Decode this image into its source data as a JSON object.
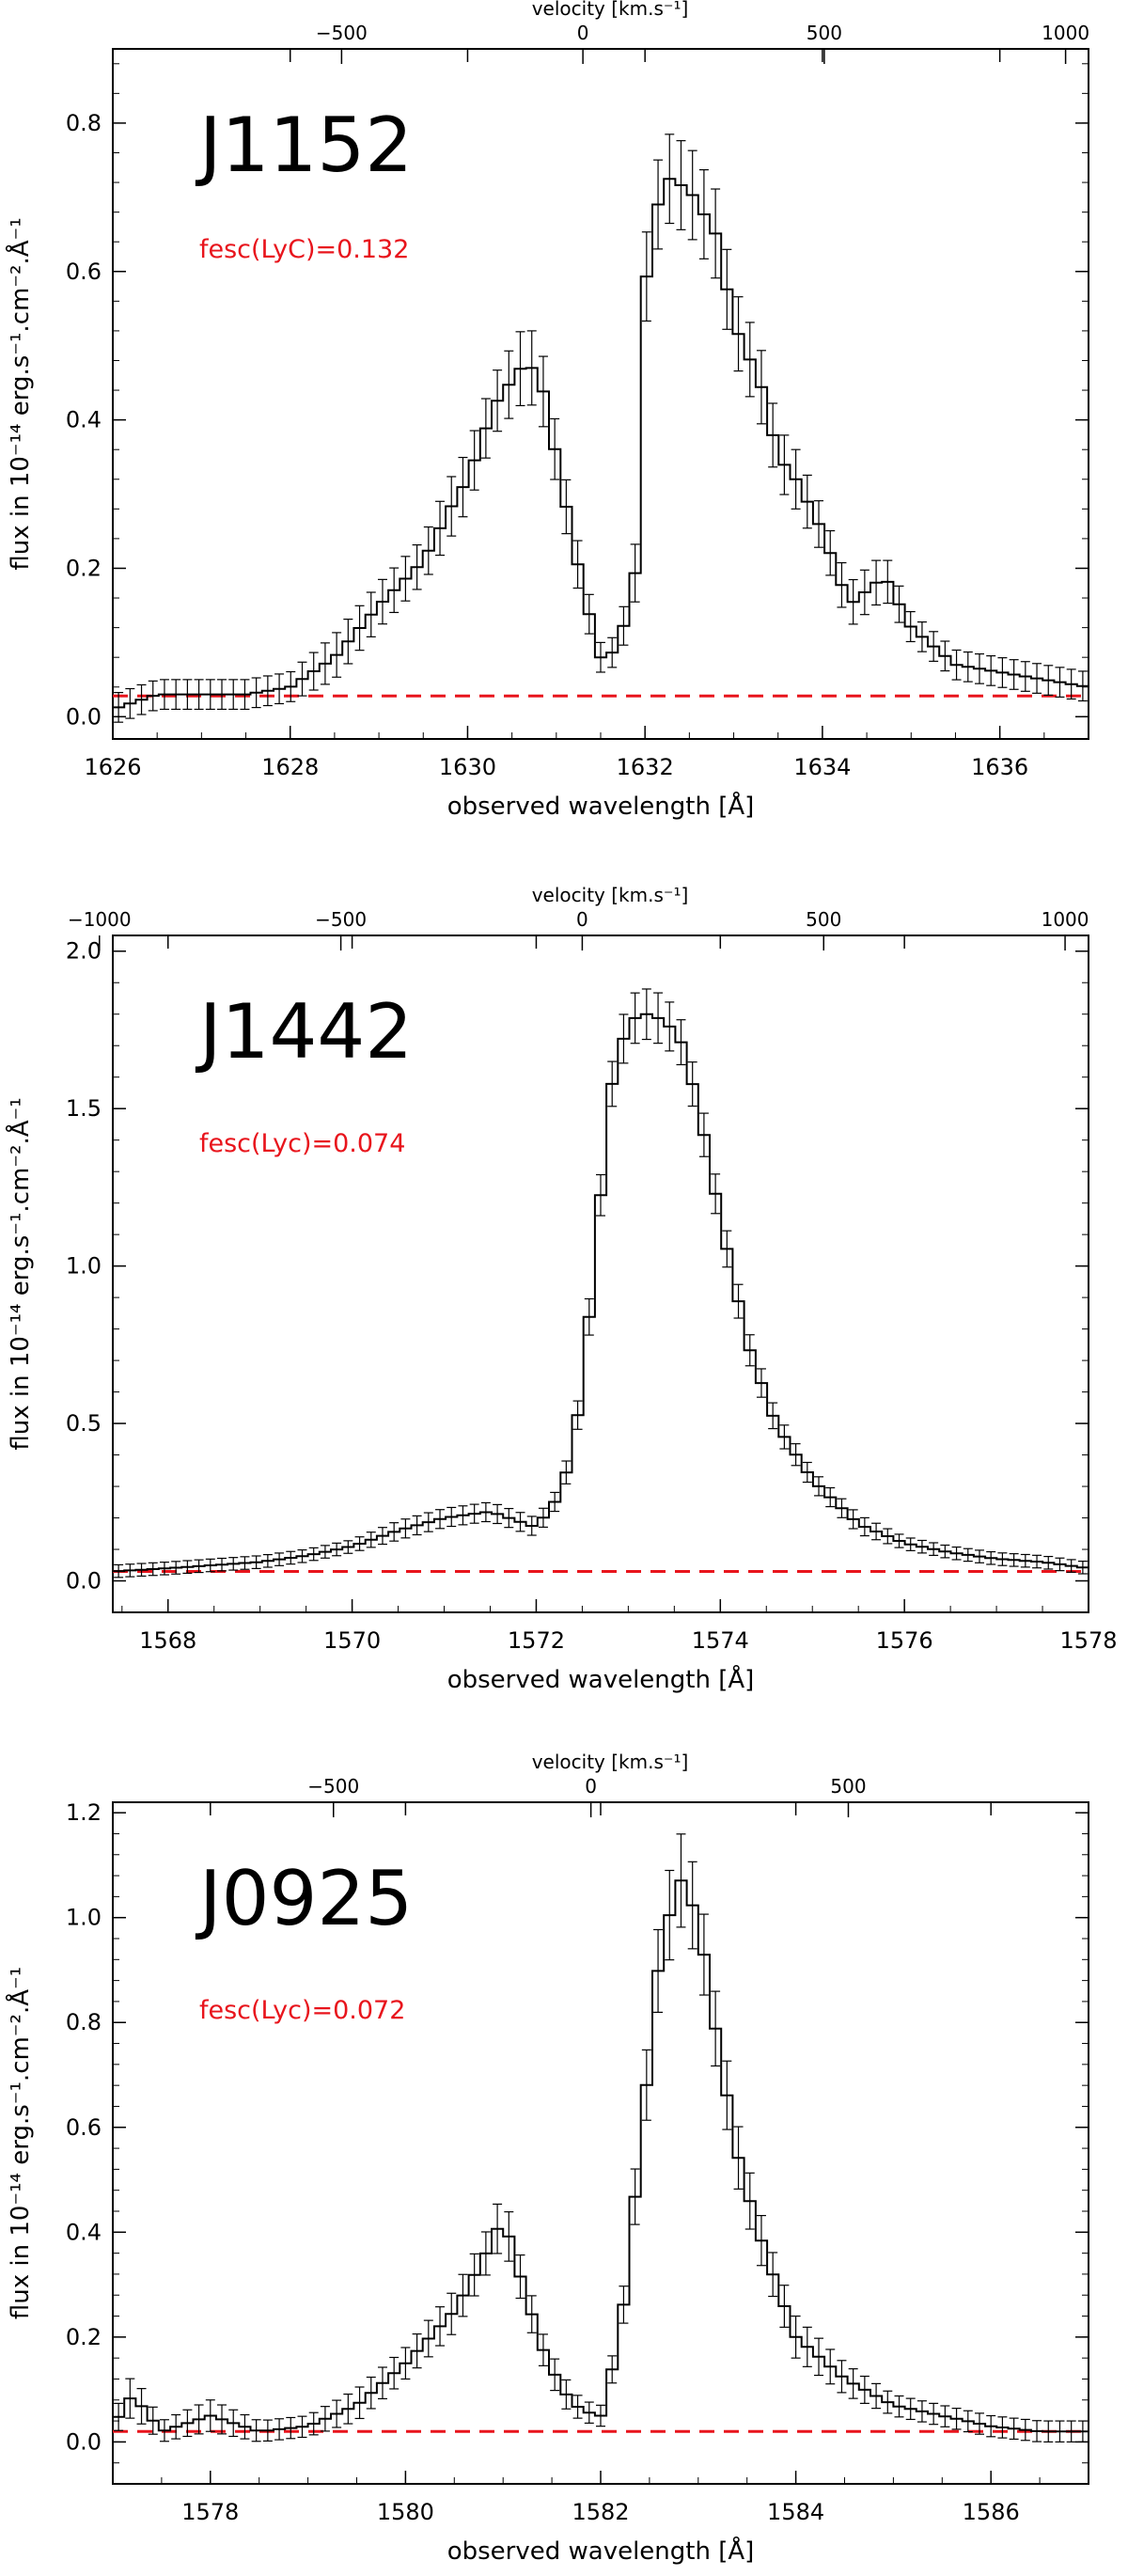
{
  "style": {
    "step_color": "#000000",
    "continuum_color": "#e8141c",
    "frame_color": "#000000"
  },
  "chart_data": [
    {
      "type": "line",
      "name": "J1152",
      "title": "J1152",
      "annotation": "fesc(LyC)=0.132",
      "xlabel": "observed wavelength [Å]",
      "ylabel": "flux in 10⁻¹⁴ erg.s⁻¹.cm⁻².Å⁻¹",
      "top_axis_label": "velocity [km.s⁻¹]",
      "xlim": [
        1626,
        1637
      ],
      "ylim": [
        -0.03,
        0.9
      ],
      "xticks": [
        1626,
        1628,
        1630,
        1632,
        1634,
        1636
      ],
      "xtick_labels": [
        "1626",
        "1628",
        "1630",
        "1632",
        "1634",
        "1636"
      ],
      "yticks": [
        0.0,
        0.2,
        0.4,
        0.6,
        0.8
      ],
      "ytick_labels": [
        "0.0",
        "0.2",
        "0.4",
        "0.6",
        "0.8"
      ],
      "top_ticks": [
        -500,
        0,
        500,
        1000
      ],
      "top_tick_labels": [
        "−500",
        "0",
        "500",
        "1000"
      ],
      "rest_wavelength": 1631.3,
      "continuum": 0.028,
      "x": [
        1626.0,
        1626.5,
        1627.0,
        1627.5,
        1628.0,
        1628.5,
        1629.0,
        1629.5,
        1629.8,
        1630.0,
        1630.3,
        1630.6,
        1630.8,
        1631.0,
        1631.3,
        1631.5,
        1631.7,
        1631.9,
        1632.0,
        1632.2,
        1632.5,
        1632.8,
        1633.0,
        1633.3,
        1633.5,
        1633.7,
        1634.0,
        1634.3,
        1634.7,
        1635.0,
        1635.5,
        1636.0,
        1636.5,
        1637.0
      ],
      "y": [
        0.01,
        0.03,
        0.03,
        0.03,
        0.04,
        0.08,
        0.15,
        0.21,
        0.28,
        0.32,
        0.42,
        0.47,
        0.47,
        0.35,
        0.17,
        0.08,
        0.09,
        0.2,
        0.58,
        0.73,
        0.71,
        0.65,
        0.53,
        0.45,
        0.35,
        0.32,
        0.25,
        0.15,
        0.19,
        0.12,
        0.07,
        0.06,
        0.05,
        0.04
      ],
      "err": [
        0.02,
        0.02,
        0.02,
        0.02,
        0.02,
        0.03,
        0.03,
        0.03,
        0.04,
        0.04,
        0.04,
        0.05,
        0.05,
        0.04,
        0.03,
        0.02,
        0.02,
        0.04,
        0.06,
        0.06,
        0.06,
        0.06,
        0.05,
        0.05,
        0.04,
        0.04,
        0.03,
        0.03,
        0.03,
        0.02,
        0.02,
        0.02,
        0.02,
        0.02
      ]
    },
    {
      "type": "line",
      "name": "J1442",
      "title": "J1442",
      "annotation": "fesc(Lyc)=0.074",
      "xlabel": "observed wavelength [Å]",
      "ylabel": "flux in 10⁻¹⁴ erg.s⁻¹.cm⁻².Å⁻¹",
      "top_axis_label": "velocity [km.s⁻¹]",
      "xlim": [
        1567.4,
        1578.0
      ],
      "ylim": [
        -0.1,
        2.05
      ],
      "xticks": [
        1568,
        1570,
        1572,
        1574,
        1576,
        1578
      ],
      "xtick_labels": [
        "1568",
        "1570",
        "1572",
        "1574",
        "1576",
        "1578"
      ],
      "yticks": [
        0.0,
        0.5,
        1.0,
        1.5,
        2.0
      ],
      "ytick_labels": [
        "0.0",
        "0.5",
        "1.0",
        "1.5",
        "2.0"
      ],
      "top_ticks": [
        -1000,
        -500,
        0,
        500,
        1000
      ],
      "top_tick_labels": [
        "−1000",
        "−500",
        "0",
        "500",
        "1000"
      ],
      "rest_wavelength": 1572.5,
      "continuum": 0.03,
      "x": [
        1567.4,
        1568.0,
        1568.5,
        1569.0,
        1569.5,
        1570.0,
        1570.5,
        1571.0,
        1571.5,
        1572.0,
        1572.2,
        1572.4,
        1572.6,
        1572.8,
        1573.0,
        1573.2,
        1573.4,
        1573.6,
        1573.8,
        1574.0,
        1574.3,
        1574.6,
        1575.0,
        1575.5,
        1576.0,
        1576.5,
        1577.0,
        1577.5,
        1578.0
      ],
      "y": [
        0.03,
        0.04,
        0.05,
        0.06,
        0.08,
        0.11,
        0.16,
        0.2,
        0.22,
        0.17,
        0.25,
        0.4,
        0.9,
        1.55,
        1.78,
        1.8,
        1.78,
        1.7,
        1.45,
        1.15,
        0.75,
        0.5,
        0.32,
        0.18,
        0.12,
        0.09,
        0.07,
        0.06,
        0.04
      ],
      "err": [
        0.02,
        0.02,
        0.02,
        0.02,
        0.02,
        0.02,
        0.03,
        0.03,
        0.03,
        0.03,
        0.03,
        0.04,
        0.06,
        0.07,
        0.08,
        0.08,
        0.08,
        0.07,
        0.07,
        0.06,
        0.05,
        0.04,
        0.03,
        0.03,
        0.02,
        0.02,
        0.02,
        0.02,
        0.02
      ]
    },
    {
      "type": "line",
      "name": "J0925",
      "title": "J0925",
      "annotation": "fesc(Lyc)=0.072",
      "xlabel": "observed wavelength [Å]",
      "ylabel": "flux in 10⁻¹⁴ erg.s⁻¹.cm⁻².Å⁻¹",
      "top_axis_label": "velocity [km.s⁻¹]",
      "xlim": [
        1577.0,
        1587.0
      ],
      "ylim": [
        -0.08,
        1.22
      ],
      "xticks": [
        1578,
        1580,
        1582,
        1584,
        1586
      ],
      "xtick_labels": [
        "1578",
        "1580",
        "1582",
        "1584",
        "1586"
      ],
      "yticks": [
        0.0,
        0.2,
        0.4,
        0.6,
        0.8,
        1.0,
        1.2
      ],
      "ytick_labels": [
        "0.0",
        "0.2",
        "0.4",
        "0.6",
        "0.8",
        "1.0",
        "1.2"
      ],
      "top_ticks": [
        -500,
        0,
        500
      ],
      "top_tick_labels": [
        "−500",
        "0",
        "500"
      ],
      "rest_wavelength": 1581.9,
      "continuum": 0.02,
      "x": [
        1577.0,
        1577.2,
        1577.5,
        1578.0,
        1578.5,
        1579.0,
        1579.5,
        1580.0,
        1580.5,
        1580.8,
        1581.0,
        1581.2,
        1581.4,
        1581.6,
        1581.8,
        1582.0,
        1582.2,
        1582.4,
        1582.6,
        1582.8,
        1583.0,
        1583.2,
        1583.4,
        1583.6,
        1583.8,
        1584.0,
        1584.5,
        1585.0,
        1585.5,
        1586.0,
        1586.5,
        1587.0
      ],
      "y": [
        0.03,
        0.09,
        0.02,
        0.05,
        0.02,
        0.03,
        0.07,
        0.15,
        0.25,
        0.35,
        0.43,
        0.3,
        0.18,
        0.1,
        0.06,
        0.05,
        0.2,
        0.55,
        0.92,
        1.08,
        1.0,
        0.76,
        0.55,
        0.41,
        0.3,
        0.2,
        0.12,
        0.07,
        0.05,
        0.03,
        0.02,
        0.02
      ],
      "err": [
        0.02,
        0.04,
        0.02,
        0.03,
        0.02,
        0.02,
        0.03,
        0.03,
        0.04,
        0.04,
        0.05,
        0.04,
        0.03,
        0.03,
        0.02,
        0.02,
        0.03,
        0.06,
        0.08,
        0.09,
        0.08,
        0.07,
        0.06,
        0.05,
        0.04,
        0.04,
        0.03,
        0.02,
        0.02,
        0.02,
        0.02,
        0.02
      ]
    }
  ]
}
